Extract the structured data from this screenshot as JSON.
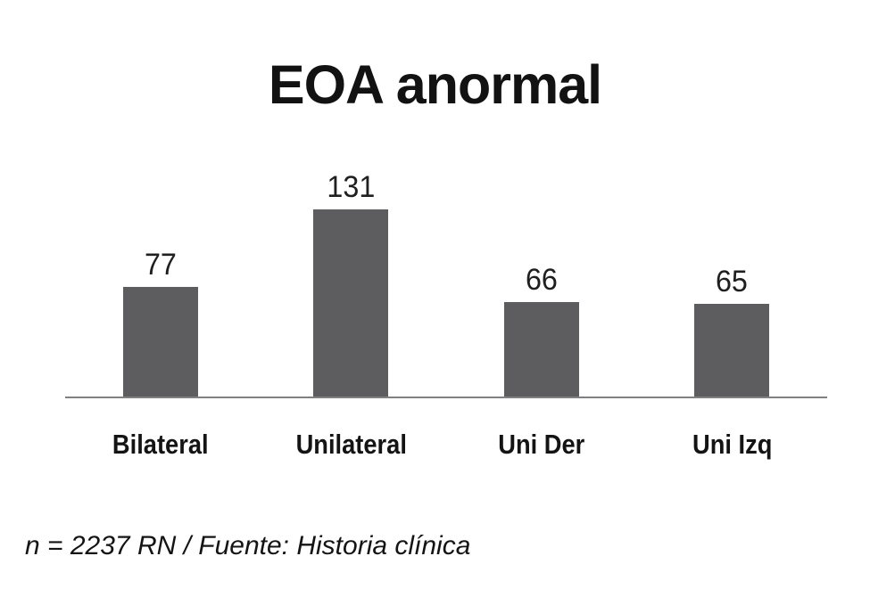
{
  "footnote": "n = 2237 RN / Fuente: Historia clínica",
  "colors": {
    "bar": "#5d5d60",
    "axis_line": "#808080",
    "title_text": "#121212",
    "label_text": "#1f1f1f"
  },
  "chart_data": {
    "type": "bar",
    "title": "EOA anormal",
    "categories": [
      "Bilateral",
      "Unilateral",
      "Uni Der",
      "Uni Izq"
    ],
    "values": [
      77,
      131,
      66,
      65
    ],
    "data_labels": [
      "77",
      "131",
      "66",
      "65"
    ],
    "xlabel": "",
    "ylabel": "",
    "grid": false,
    "legend": false,
    "y_axis_visible": false,
    "x_axis_line_visible": true,
    "bar_color": "#5d5d60",
    "annotation": "n = 2237 RN / Fuente: Historia clínica"
  }
}
